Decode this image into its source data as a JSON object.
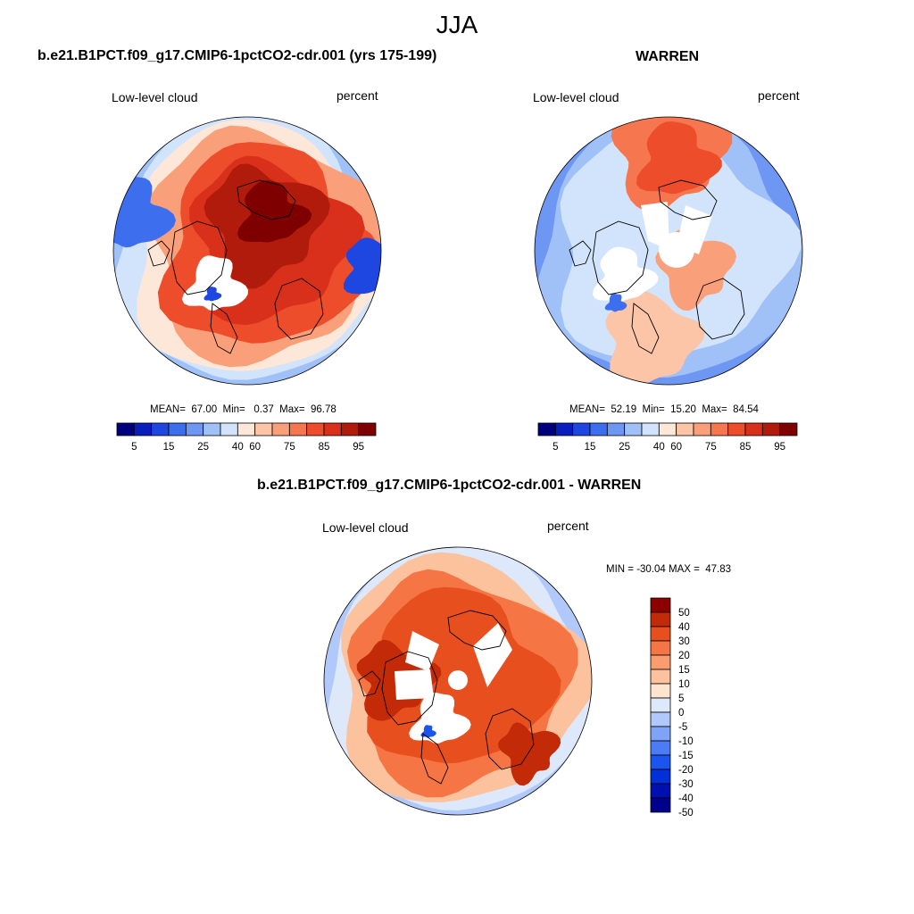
{
  "main_title": "JJA",
  "palette_abs": [
    "#00007f",
    "#0a1ebe",
    "#1e46e1",
    "#3c6eee",
    "#6e97f3",
    "#a0c0f8",
    "#d2e4fb",
    "#fde7d8",
    "#fcc5a7",
    "#f9a07a",
    "#f6774f",
    "#ed4d2b",
    "#d8301a",
    "#b01b0c",
    "#7f0000"
  ],
  "palette_diff": [
    "#00008c",
    "#0010b0",
    "#0030d8",
    "#1a55f0",
    "#4c7cf5",
    "#7ea3f8",
    "#b1c8fb",
    "#dde9fb",
    "#fde4cf",
    "#fcc29e",
    "#fb9c6f",
    "#f57544",
    "#e84f1e",
    "#c22a08",
    "#8c0000"
  ],
  "panels": [
    {
      "title": "b.e21.B1PCT.f09_g17.CMIP6-1pctCO2-cdr.001 (yrs 175-199)",
      "variable": "Low-level cloud",
      "units": "percent",
      "mean": "67.00",
      "min": "0.37",
      "max": "96.78",
      "mean_label": "MEAN=",
      "min_label": "Min=",
      "max_label": "Max=",
      "colorbar_ticks": [
        "5",
        "15",
        "25",
        "40",
        "60",
        "75",
        "85",
        "95"
      ]
    },
    {
      "title": "WARREN",
      "variable": "Low-level cloud",
      "units": "percent",
      "mean": "52.19",
      "min": "15.20",
      "max": "84.54",
      "mean_label": "MEAN=",
      "min_label": "Min=",
      "max_label": "Max=",
      "colorbar_ticks": [
        "5",
        "15",
        "25",
        "40",
        "60",
        "75",
        "85",
        "95"
      ]
    }
  ],
  "difference": {
    "title": "b.e21.B1PCT.f09_g17.CMIP6-1pctCO2-cdr.001 - WARREN",
    "variable": "Low-level cloud",
    "units": "percent",
    "min_label": "MIN =",
    "max_label": "MAX =",
    "min": "-30.04",
    "max": "47.83",
    "colorbar_ticks": [
      "50",
      "40",
      "30",
      "20",
      "15",
      "10",
      "5",
      "0",
      "-5",
      "-10",
      "-15",
      "-20",
      "-30",
      "-40",
      "-50"
    ]
  }
}
